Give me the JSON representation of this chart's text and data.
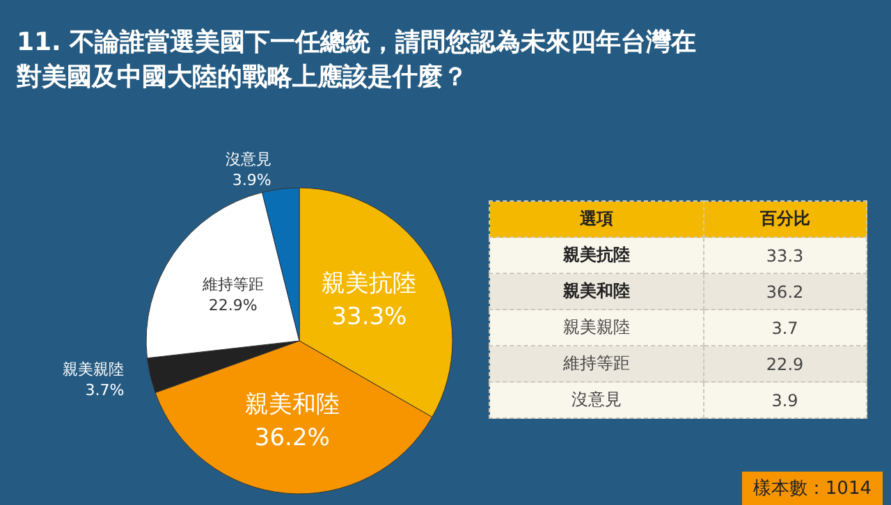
{
  "chart_data": [
    {
      "type": "pie",
      "title": "11. 不論誰當選美國下一任總統，請問您認為未來四年台灣在對美國及中國大陸的戰略上應該是什麼？",
      "categories": [
        "親美抗陸",
        "親美和陸",
        "親美親陸",
        "維持等距",
        "沒意見"
      ],
      "values": [
        33.3,
        36.2,
        3.7,
        22.9,
        3.9
      ],
      "colors": [
        "#f5b800",
        "#f79500",
        "#222222",
        "#ffffff",
        "#0a6eb4"
      ],
      "value_labels": [
        "33.3%",
        "36.2%",
        "3.7%",
        "22.9%",
        "3.9%"
      ],
      "annotations": [
        "樣本數：1014"
      ],
      "legend": false
    },
    {
      "type": "other",
      "categories": [
        "親美抗陸",
        "親美和陸",
        "親美親陸",
        "維持等距",
        "沒意見"
      ],
      "values": [
        33.3,
        36.2,
        3.7,
        22.9,
        3.9
      ],
      "annotations": [
        "選項",
        "百分比"
      ],
      "data_labels": true
    }
  ]
}
